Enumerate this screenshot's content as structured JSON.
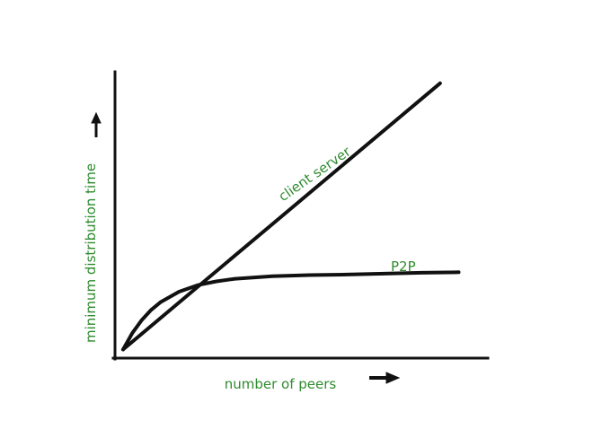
{
  "colors": {
    "label": "#2e8b2e",
    "line": "#111111",
    "background": "#ffffff"
  },
  "chart_data": {
    "type": "line",
    "title": "",
    "xlabel": "number of peers",
    "ylabel": "minimum distribution time",
    "grid": false,
    "legend": "none",
    "xlim": [
      0,
      10
    ],
    "ylim": [
      0,
      10
    ],
    "series": [
      {
        "name": "client server",
        "x": [
          0,
          8.5
        ],
        "y": [
          0.3,
          9.6
        ]
      },
      {
        "name": "P2P",
        "x": [
          0,
          0.25,
          0.5,
          0.75,
          1,
          1.5,
          2,
          2.5,
          3,
          4,
          5,
          6,
          7,
          8,
          9
        ],
        "y": [
          0.3,
          0.88,
          1.33,
          1.68,
          1.95,
          2.32,
          2.55,
          2.68,
          2.77,
          2.86,
          2.9,
          2.92,
          2.95,
          2.98,
          3.0
        ]
      }
    ]
  }
}
